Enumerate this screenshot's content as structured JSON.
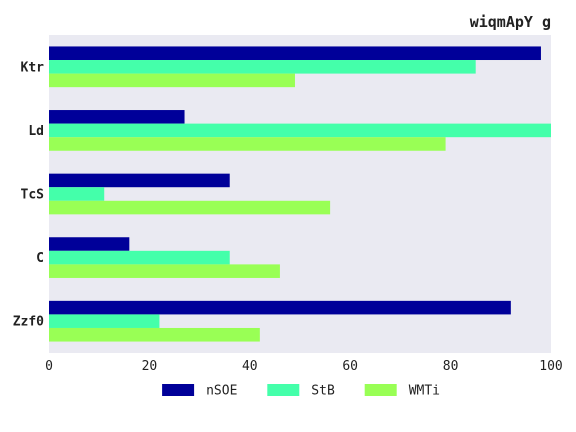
{
  "chart_data": {
    "type": "bar",
    "orientation": "horizontal",
    "title": "wiqmApY g",
    "xlabel": "",
    "ylabel": "",
    "categories": [
      "Ktr",
      "Ld",
      "TcS",
      "C",
      "Zzf0"
    ],
    "series": [
      {
        "name": "nSOE",
        "color": "#000099",
        "values": [
          98,
          27,
          36,
          16,
          92
        ]
      },
      {
        "name": "StB",
        "color": "#44ffaa",
        "values": [
          85,
          100,
          11,
          36,
          22
        ]
      },
      {
        "name": "WMTi",
        "color": "#99ff55",
        "values": [
          49,
          79,
          56,
          46,
          42
        ]
      }
    ],
    "xlim": [
      0,
      100
    ],
    "xticks": [
      "0",
      "20",
      "40",
      "60",
      "80",
      "100"
    ],
    "grid": false,
    "legend_position": "bottom-center",
    "plot_background": "#eaeaf2"
  }
}
